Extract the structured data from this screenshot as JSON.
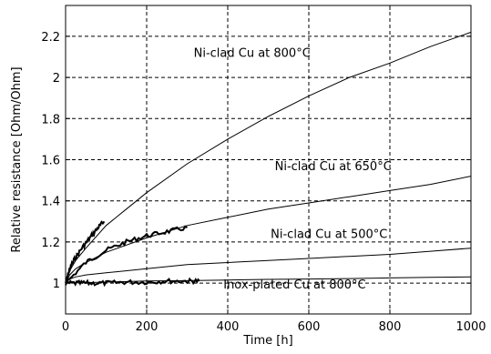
{
  "chart_data": {
    "type": "line",
    "title": "",
    "xlabel": "Time [h]",
    "ylabel": "Relative resistance [Ohm/Ohm]",
    "xlim": [
      0,
      1000
    ],
    "ylim": [
      0.85,
      2.35
    ],
    "xticks": [
      0,
      200,
      400,
      600,
      800,
      1000
    ],
    "xtick_labels": [
      "0",
      "200",
      "400",
      "600",
      "800",
      "1000"
    ],
    "yticks": [
      1,
      1.2,
      1.4,
      1.6,
      1.8,
      2,
      2.2
    ],
    "ytick_labels": [
      "1",
      "1.2",
      "1.4",
      "1.6",
      "1.8",
      "2",
      "2.2"
    ],
    "grid": true,
    "line_color": "#000000",
    "series": [
      {
        "label": "Ni-clad Cu at 800°C",
        "x": [
          0,
          10,
          25,
          50,
          100,
          150,
          200,
          300,
          400,
          500,
          600,
          700,
          800,
          900,
          1000
        ],
        "y": [
          1.0,
          1.06,
          1.11,
          1.17,
          1.28,
          1.36,
          1.44,
          1.58,
          1.7,
          1.81,
          1.91,
          2.0,
          2.07,
          2.15,
          2.22
        ],
        "label_anchor": [
          460,
          2.1
        ]
      },
      {
        "label": "",
        "x": [
          0,
          10,
          20,
          40,
          60,
          80,
          95
        ],
        "y": [
          1.0,
          1.07,
          1.11,
          1.17,
          1.22,
          1.27,
          1.3
        ],
        "noisy": true
      },
      {
        "label": "Ni-clad Cu at 650°C",
        "x": [
          0,
          10,
          25,
          50,
          100,
          200,
          300,
          400,
          500,
          600,
          700,
          800,
          900,
          1000
        ],
        "y": [
          1.0,
          1.04,
          1.07,
          1.1,
          1.15,
          1.22,
          1.28,
          1.32,
          1.36,
          1.39,
          1.42,
          1.45,
          1.48,
          1.52
        ],
        "label_anchor": [
          660,
          1.55
        ]
      },
      {
        "label": "",
        "x": [
          0,
          50,
          100,
          150,
          200,
          250,
          300
        ],
        "y": [
          1.0,
          1.1,
          1.16,
          1.2,
          1.23,
          1.25,
          1.27
        ],
        "noisy": true
      },
      {
        "label": "Ni-clad Cu at 500°C",
        "x": [
          0,
          10,
          25,
          50,
          100,
          200,
          300,
          400,
          500,
          600,
          700,
          800,
          900,
          1000
        ],
        "y": [
          1.0,
          1.02,
          1.03,
          1.04,
          1.05,
          1.07,
          1.09,
          1.1,
          1.11,
          1.12,
          1.13,
          1.14,
          1.155,
          1.17
        ],
        "label_anchor": [
          650,
          1.22
        ]
      },
      {
        "label": "Inox-plated Cu at 800°C",
        "x": [
          0,
          100,
          200,
          300,
          400,
          500,
          600,
          700,
          800,
          900,
          1000
        ],
        "y": [
          1.0,
          1.005,
          1.01,
          1.012,
          1.015,
          1.018,
          1.02,
          1.022,
          1.025,
          1.028,
          1.03
        ],
        "label_anchor": [
          565,
          0.975
        ]
      },
      {
        "label": "",
        "x": [
          0,
          30,
          60,
          100,
          150,
          200,
          250,
          300,
          330
        ],
        "y": [
          1.0,
          1.0,
          1.0,
          1.0,
          1.005,
          1.005,
          1.01,
          1.01,
          1.01
        ],
        "noisy": true
      }
    ]
  }
}
